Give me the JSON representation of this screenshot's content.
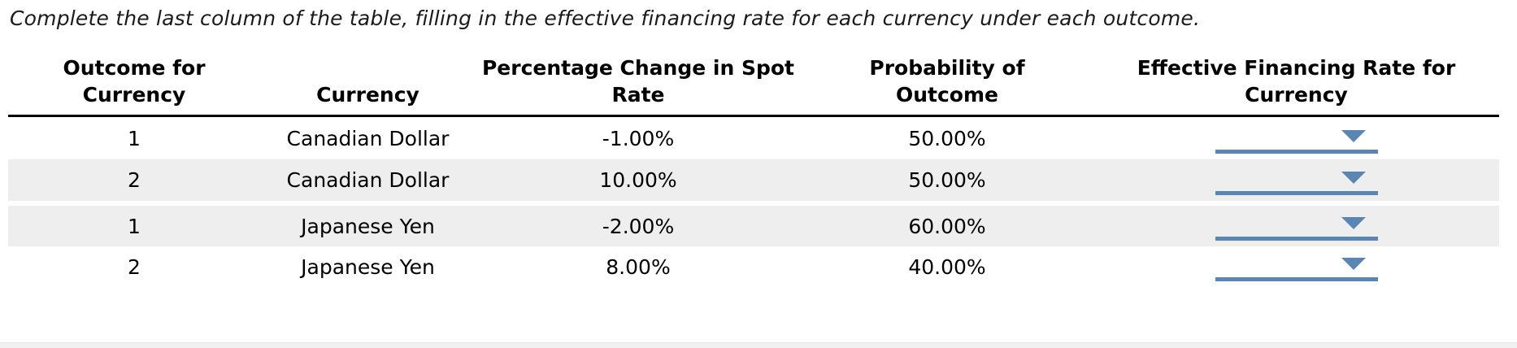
{
  "instruction": "Complete the last column of the table, filling in the effective financing rate for each currency under each outcome.",
  "table": {
    "columns": [
      {
        "line1": "Outcome for",
        "line2": "Currency"
      },
      {
        "line1": "",
        "line2": "Currency"
      },
      {
        "line1": "Percentage Change in Spot",
        "line2": "Rate"
      },
      {
        "line1": "Probability of",
        "line2": "Outcome"
      },
      {
        "line1": "Effective Financing Rate for",
        "line2": "Currency"
      }
    ],
    "rows": [
      {
        "outcome": "1",
        "currency": "Canadian Dollar",
        "pct_change_spot_rate": "-1.00%",
        "probability": "50.00%",
        "effective_rate_value": ""
      },
      {
        "outcome": "2",
        "currency": "Canadian Dollar",
        "pct_change_spot_rate": "10.00%",
        "probability": "50.00%",
        "effective_rate_value": ""
      },
      {
        "outcome": "1",
        "currency": "Japanese Yen",
        "pct_change_spot_rate": "-2.00%",
        "probability": "60.00%",
        "effective_rate_value": ""
      },
      {
        "outcome": "2",
        "currency": "Japanese Yen",
        "pct_change_spot_rate": "8.00%",
        "probability": "40.00%",
        "effective_rate_value": ""
      }
    ]
  },
  "icons": {
    "dropdown_arrow": "chevron-down-triangle"
  },
  "colors": {
    "accent_blue": "#5b86b3",
    "row_shade": "#eeeeee",
    "header_rule": "#000000",
    "footer_strip": "#f1f1f1"
  }
}
